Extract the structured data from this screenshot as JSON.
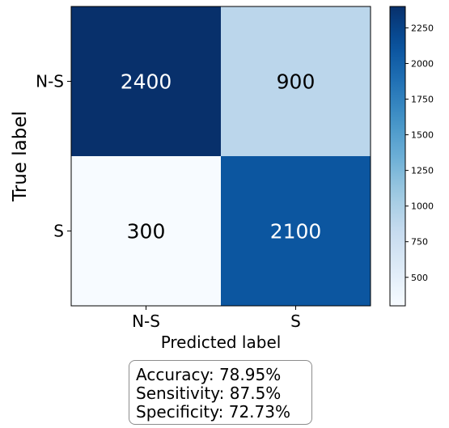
{
  "chart_data": {
    "type": "heatmap",
    "title": "",
    "xlabel": "Predicted label",
    "ylabel": "True label",
    "x_categories": [
      "N-S",
      "S"
    ],
    "y_categories": [
      "N-S",
      "S"
    ],
    "values": [
      [
        2400,
        900
      ],
      [
        300,
        2100
      ]
    ],
    "colormap": "Blues",
    "colorbar": {
      "range": [
        300,
        2400
      ],
      "ticks": [
        500,
        750,
        1000,
        1250,
        1500,
        1750,
        2000,
        2250
      ]
    },
    "grid": false
  },
  "stats": {
    "accuracy": "Accuracy: 78.95%",
    "sensitivity": "Sensitivity: 87.5%",
    "specificity": "Specificity: 72.73%"
  }
}
